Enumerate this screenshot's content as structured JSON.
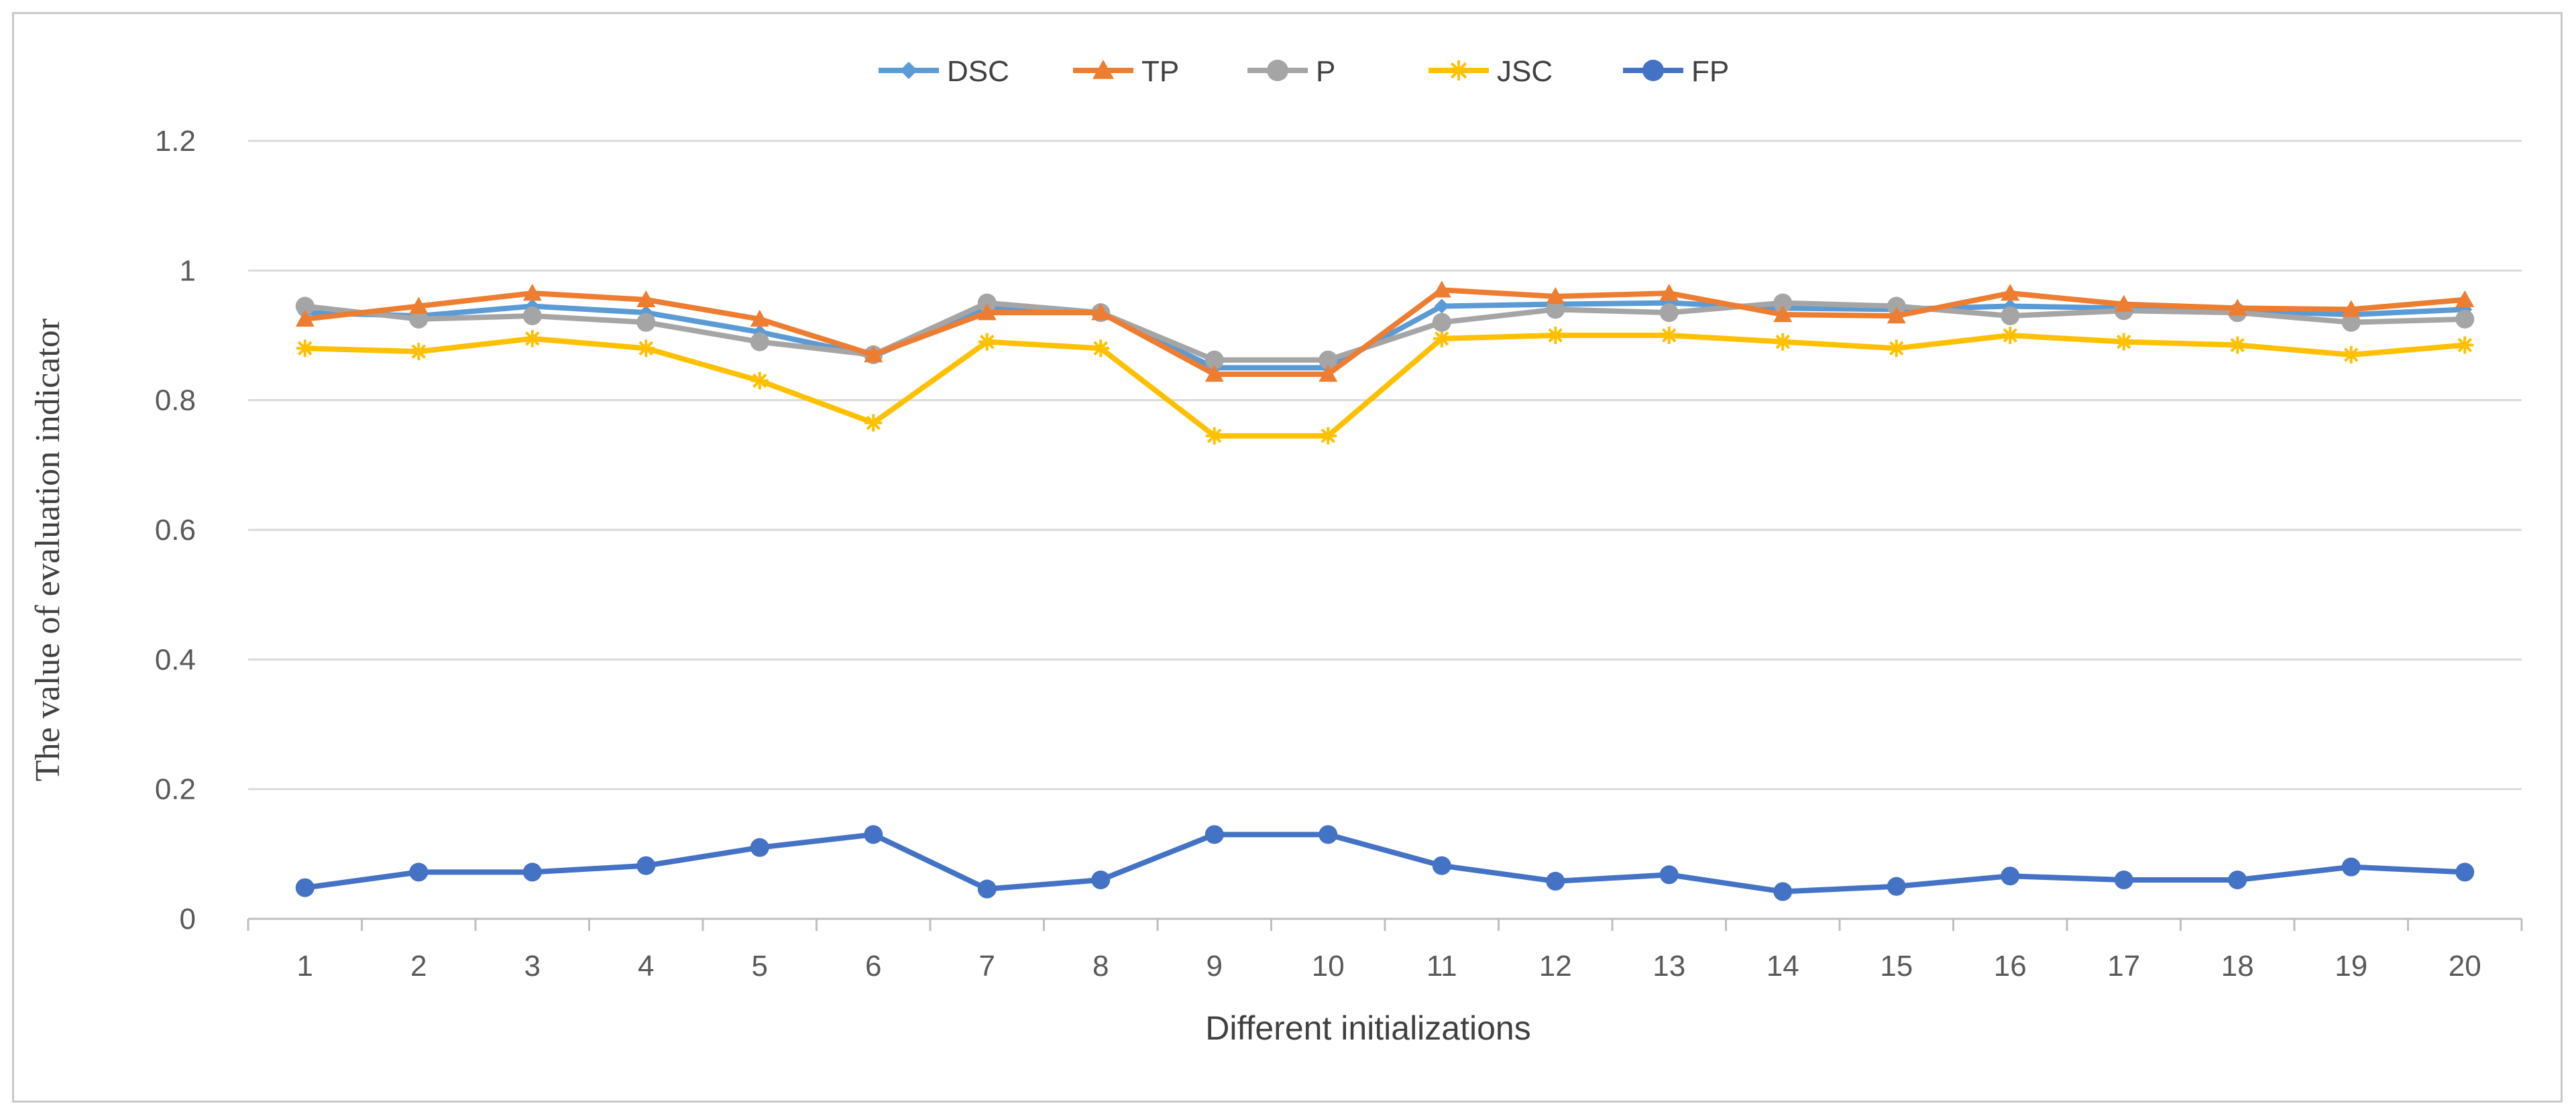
{
  "chart_data": {
    "type": "line",
    "title": "",
    "xlabel": "Different initializations",
    "ylabel": "The value of evaluation indicator",
    "categories": [
      "1",
      "2",
      "3",
      "4",
      "5",
      "6",
      "7",
      "8",
      "9",
      "10",
      "11",
      "12",
      "13",
      "14",
      "15",
      "16",
      "17",
      "18",
      "19",
      "20"
    ],
    "y_ticks": [
      "0",
      "0.2",
      "0.4",
      "0.6",
      "0.8",
      "1",
      "1.2"
    ],
    "ylim": [
      0,
      1.2
    ],
    "grid": true,
    "legend_position": "top",
    "series": [
      {
        "name": "DSC",
        "color": "#5b9bd5",
        "marker": "diamond",
        "values": [
          0.935,
          0.93,
          0.945,
          0.935,
          0.905,
          0.868,
          0.942,
          0.935,
          0.85,
          0.85,
          0.945,
          0.948,
          0.95,
          0.942,
          0.94,
          0.945,
          0.942,
          0.938,
          0.932,
          0.94
        ]
      },
      {
        "name": "TP",
        "color": "#ed7d31",
        "marker": "triangle",
        "values": [
          0.925,
          0.945,
          0.965,
          0.955,
          0.925,
          0.87,
          0.935,
          0.935,
          0.84,
          0.84,
          0.97,
          0.96,
          0.965,
          0.932,
          0.93,
          0.965,
          0.948,
          0.942,
          0.94,
          0.955
        ]
      },
      {
        "name": "P",
        "color": "#a5a5a5",
        "marker": "circle",
        "values": [
          0.945,
          0.925,
          0.93,
          0.92,
          0.89,
          0.87,
          0.95,
          0.935,
          0.862,
          0.862,
          0.92,
          0.94,
          0.935,
          0.95,
          0.945,
          0.93,
          0.938,
          0.935,
          0.92,
          0.925
        ]
      },
      {
        "name": "JSC",
        "color": "#ffc000",
        "marker": "star",
        "values": [
          0.88,
          0.875,
          0.895,
          0.88,
          0.83,
          0.765,
          0.89,
          0.88,
          0.745,
          0.745,
          0.895,
          0.9,
          0.9,
          0.89,
          0.88,
          0.9,
          0.89,
          0.885,
          0.87,
          0.885
        ]
      },
      {
        "name": "FP",
        "color": "#4472c4",
        "marker": "circle",
        "values": [
          0.048,
          0.072,
          0.072,
          0.082,
          0.11,
          0.13,
          0.046,
          0.06,
          0.13,
          0.13,
          0.082,
          0.058,
          0.068,
          0.042,
          0.05,
          0.066,
          0.06,
          0.06,
          0.08,
          0.072
        ]
      }
    ]
  }
}
